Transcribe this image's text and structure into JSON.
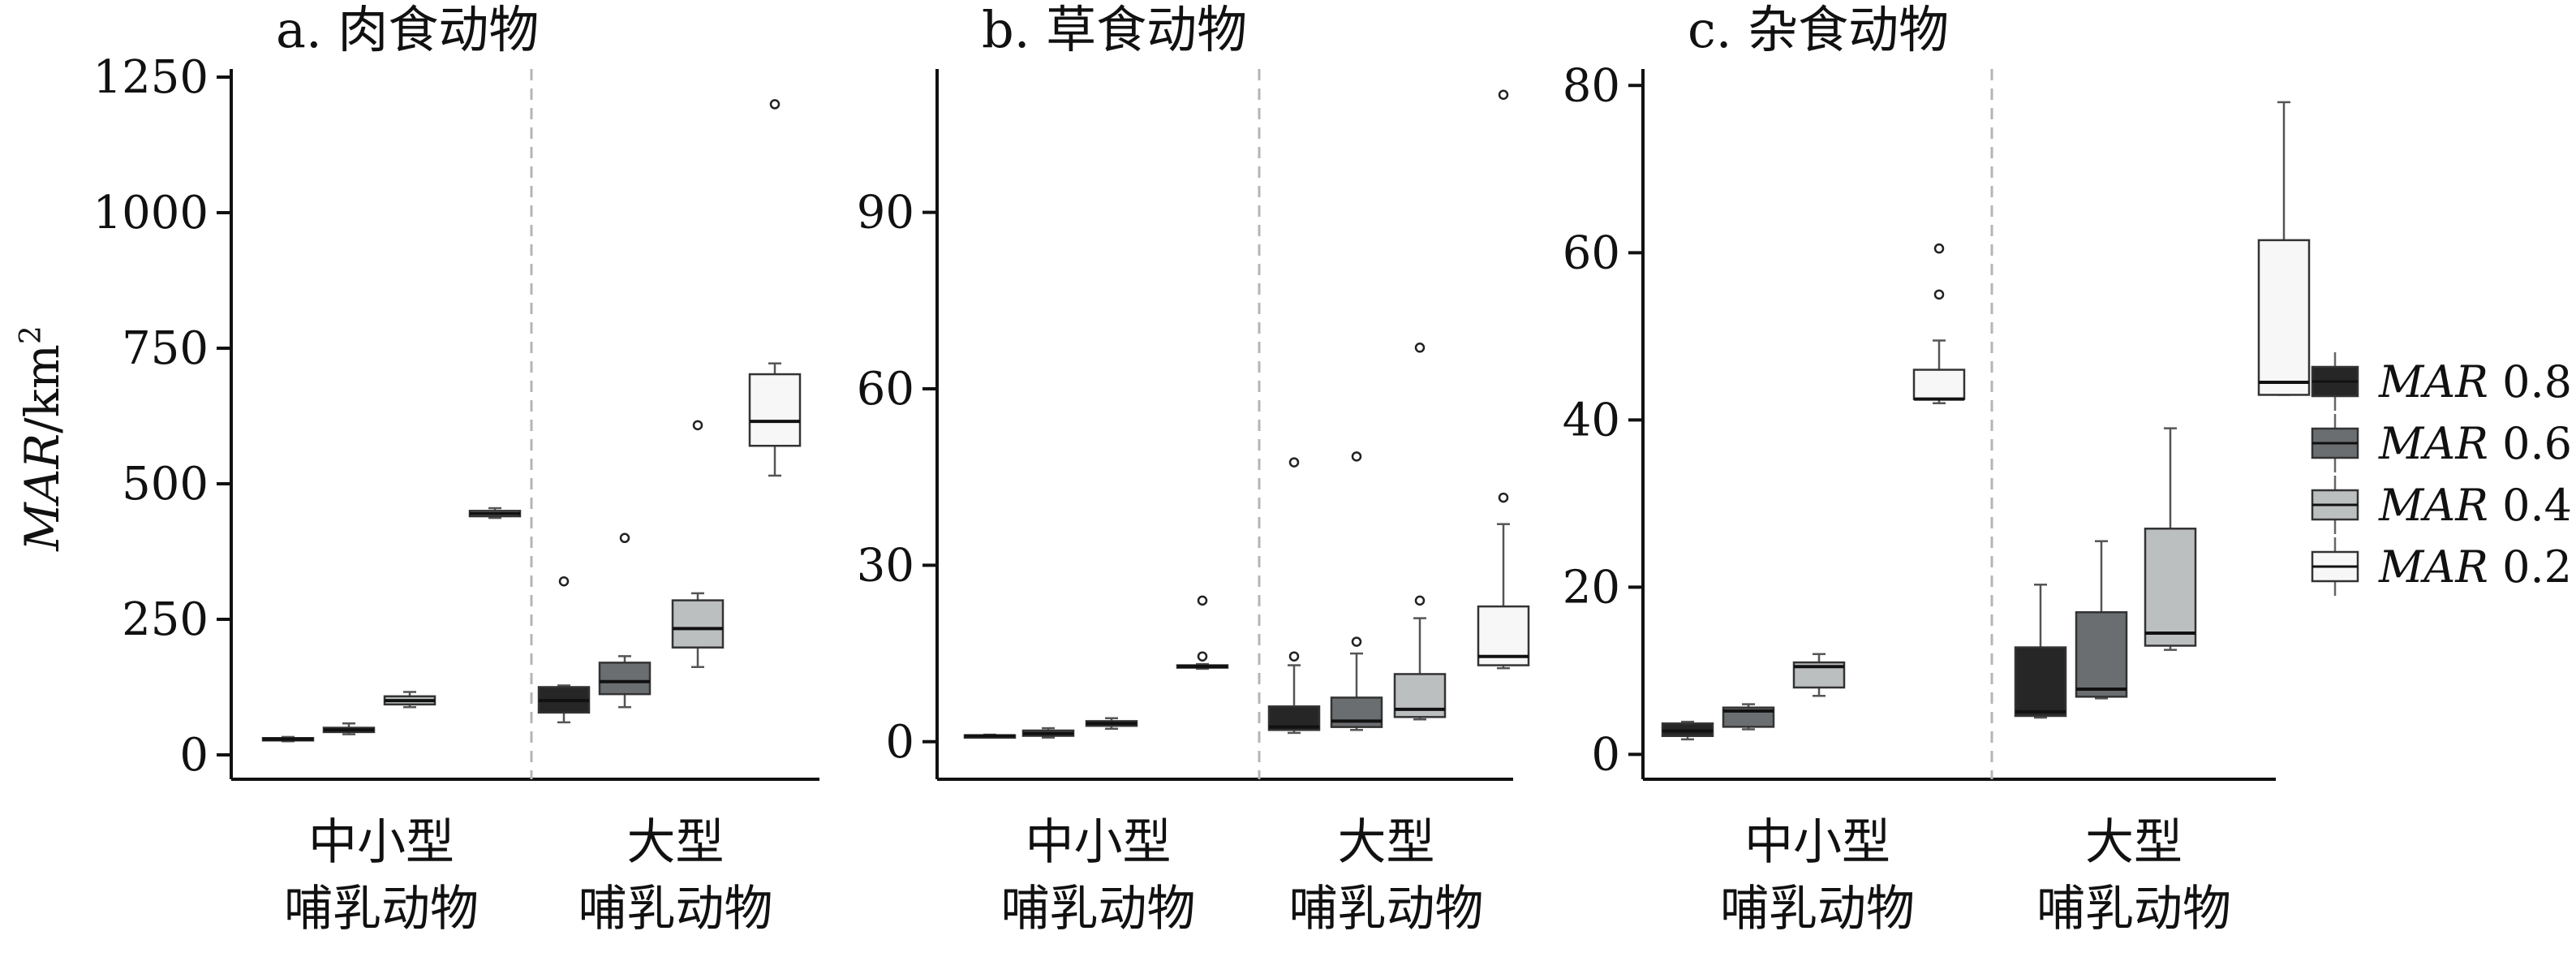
{
  "ylabel": "MAR/km²",
  "ylabel_main": "MAR",
  "ylabel_unit": "/km",
  "ylabel_sup": "2",
  "group_labels": [
    {
      "line1": "中小型",
      "line2": "哺乳动物"
    },
    {
      "line1": "大型",
      "line2": "哺乳动物"
    }
  ],
  "legend": {
    "placement": "right",
    "entries": [
      {
        "prefix": "MAR",
        "value": "0.8",
        "color": "#262626"
      },
      {
        "prefix": "MAR",
        "value": "0.6",
        "color": "#6b6e70"
      },
      {
        "prefix": "MAR",
        "value": "0.4",
        "color": "#bcbfc0"
      },
      {
        "prefix": "MAR",
        "value": "0.2",
        "color": "#f7f7f7"
      }
    ]
  },
  "chart_data": [
    {
      "type": "box",
      "title": "a. 肉食动物",
      "ylim": [
        -30,
        1250
      ],
      "yticks": [
        0,
        250,
        500,
        750,
        1000,
        1250
      ],
      "groups": [
        "中小型 哺乳动物",
        "大型 哺乳动物"
      ],
      "series": [
        {
          "name": "MAR 0.8",
          "boxes": [
            {
              "min": 25,
              "q1": 27,
              "median": 29,
              "q3": 31,
              "max": 33,
              "outliers": []
            },
            {
              "min": 60,
              "q1": 78,
              "median": 100,
              "q3": 125,
              "max": 128,
              "outliers": [
                320
              ]
            }
          ]
        },
        {
          "name": "MAR 0.6",
          "boxes": [
            {
              "min": 38,
              "q1": 42,
              "median": 46,
              "q3": 50,
              "max": 58,
              "outliers": []
            },
            {
              "min": 88,
              "q1": 112,
              "median": 135,
              "q3": 170,
              "max": 182,
              "outliers": [
                400
              ]
            }
          ]
        },
        {
          "name": "MAR 0.4",
          "boxes": [
            {
              "min": 88,
              "q1": 93,
              "median": 100,
              "q3": 108,
              "max": 116,
              "outliers": []
            },
            {
              "min": 162,
              "q1": 198,
              "median": 233,
              "q3": 285,
              "max": 298,
              "outliers": [
                608
              ]
            }
          ]
        },
        {
          "name": "MAR 0.2",
          "boxes": [
            {
              "min": 437,
              "q1": 440,
              "median": 445,
              "q3": 450,
              "max": 455,
              "outliers": []
            },
            {
              "min": 515,
              "q1": 570,
              "median": 615,
              "q3": 702,
              "max": 722,
              "outliers": [
                1200
              ]
            }
          ]
        }
      ]
    },
    {
      "type": "box",
      "title": "b. 草食动物",
      "ylim": [
        -5,
        113
      ],
      "yticks": [
        0,
        30,
        60,
        90
      ],
      "groups": [
        "中小型 哺乳动物",
        "大型 哺乳动物"
      ],
      "series": [
        {
          "name": "MAR 0.8",
          "boxes": [
            {
              "min": 0.8,
              "q1": 0.9,
              "median": 1.0,
              "q3": 1.1,
              "max": 1.2,
              "outliers": []
            },
            {
              "min": 1.5,
              "q1": 2.0,
              "median": 2.5,
              "q3": 6.0,
              "max": 13.0,
              "outliers": [
                14.5,
                47.5
              ]
            }
          ]
        },
        {
          "name": "MAR 0.6",
          "boxes": [
            {
              "min": 0.7,
              "q1": 1.0,
              "median": 1.4,
              "q3": 1.9,
              "max": 2.3,
              "outliers": []
            },
            {
              "min": 2.0,
              "q1": 2.5,
              "median": 3.5,
              "q3": 7.5,
              "max": 15.0,
              "outliers": [
                17.0,
                48.5
              ]
            }
          ]
        },
        {
          "name": "MAR 0.4",
          "boxes": [
            {
              "min": 2.2,
              "q1": 2.7,
              "median": 3.1,
              "q3": 3.5,
              "max": 4.0,
              "outliers": []
            },
            {
              "min": 3.8,
              "q1": 4.2,
              "median": 5.5,
              "q3": 11.5,
              "max": 21.0,
              "outliers": [
                24.0,
                67.0
              ]
            }
          ]
        },
        {
          "name": "MAR 0.2",
          "boxes": [
            {
              "min": 12.4,
              "q1": 12.6,
              "median": 12.8,
              "q3": 13.0,
              "max": 13.2,
              "outliers": [
                14.5,
                24.0
              ]
            },
            {
              "min": 12.5,
              "q1": 13.0,
              "median": 14.5,
              "q3": 23.0,
              "max": 37.0,
              "outliers": [
                41.5,
                110.0
              ]
            }
          ]
        }
      ]
    },
    {
      "type": "box",
      "title": "c. 杂食动物",
      "ylim": [
        -2,
        81
      ],
      "yticks": [
        0,
        20,
        40,
        60,
        80
      ],
      "groups": [
        "中小型 哺乳动物",
        "大型 哺乳动物"
      ],
      "series": [
        {
          "name": "MAR 0.8",
          "boxes": [
            {
              "min": 1.8,
              "q1": 2.2,
              "median": 2.8,
              "q3": 3.7,
              "max": 3.9,
              "outliers": []
            },
            {
              "min": 4.4,
              "q1": 4.6,
              "median": 5.1,
              "q3": 12.8,
              "max": 20.3,
              "outliers": []
            }
          ]
        },
        {
          "name": "MAR 0.6",
          "boxes": [
            {
              "min": 3.0,
              "q1": 3.3,
              "median": 5.2,
              "q3": 5.6,
              "max": 6.0,
              "outliers": []
            },
            {
              "min": 6.7,
              "q1": 6.9,
              "median": 7.8,
              "q3": 17.0,
              "max": 25.5,
              "outliers": []
            }
          ]
        },
        {
          "name": "MAR 0.4",
          "boxes": [
            {
              "min": 7.0,
              "q1": 8.0,
              "median": 10.5,
              "q3": 11.0,
              "max": 12.0,
              "outliers": []
            },
            {
              "min": 12.5,
              "q1": 13.0,
              "median": 14.5,
              "q3": 27.0,
              "max": 39.0,
              "outliers": []
            }
          ]
        },
        {
          "name": "MAR 0.2",
          "boxes": [
            {
              "min": 42.0,
              "q1": 42.5,
              "median": 42.5,
              "q3": 46.0,
              "max": 49.5,
              "outliers": [
                55.0,
                60.5
              ]
            },
            {
              "min": 43.0,
              "q1": 43.0,
              "median": 44.5,
              "q3": 61.5,
              "max": 78.0,
              "outliers": []
            }
          ]
        }
      ]
    }
  ]
}
